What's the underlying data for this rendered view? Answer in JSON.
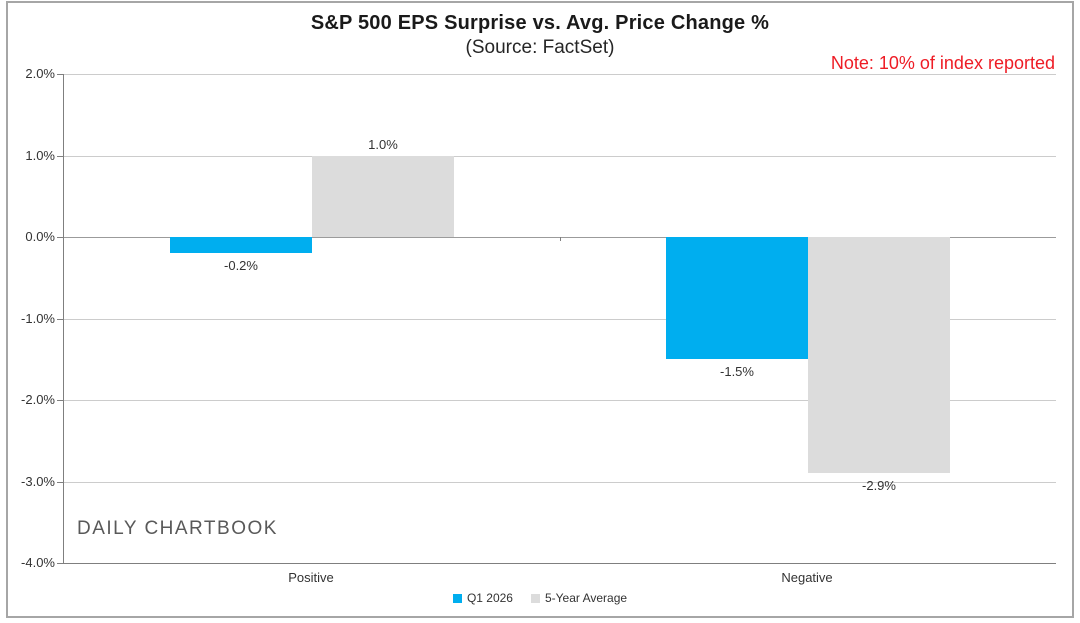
{
  "watermark": "DAILY CHARTBOOK",
  "chart_data": {
    "type": "bar",
    "title": "S&P 500 EPS Surprise vs. Avg. Price Change %",
    "subtitle": "(Source: FactSet)",
    "annotation": "Note: 10% of index reported",
    "annotation_color": "#ee1c25",
    "categories": [
      "Positive",
      "Negative"
    ],
    "series": [
      {
        "name": "Q1 2026",
        "color": "#00aeef",
        "values": [
          -0.2,
          -1.5
        ],
        "labels": [
          "-0.2%",
          "-1.5%"
        ]
      },
      {
        "name": "5-Year Average",
        "color": "#dcdcdc",
        "values": [
          1.0,
          -2.9
        ],
        "labels": [
          "1.0%",
          "-2.9%"
        ]
      }
    ],
    "xlabel": "",
    "ylabel": "",
    "ylim": [
      -4.0,
      2.0
    ],
    "ytick_step": 1.0,
    "ytick_labels": [
      "2.0%",
      "1.0%",
      "0.0%",
      "-1.0%",
      "-2.0%",
      "-3.0%",
      "-4.0%"
    ],
    "grid": true,
    "legend_position": "bottom",
    "colors": {
      "gridline": "#cccccc",
      "zero_line": "#9b9b9b",
      "axis_line": "#7f7f7f"
    }
  }
}
